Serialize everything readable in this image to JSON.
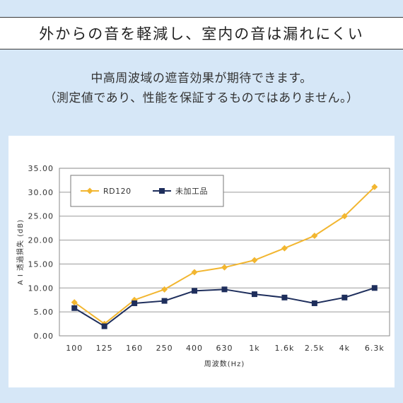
{
  "header": {
    "title": "外からの音を軽減し、室内の音は漏れにくい",
    "subtitle_line1": "中高周波域の遮音効果が期待できます。",
    "subtitle_line2": "（測定値であり、性能を保証するものではありません。）"
  },
  "chart_data": {
    "type": "line",
    "categories": [
      "100",
      "125",
      "160",
      "250",
      "400",
      "630",
      "1k",
      "1.6k",
      "2.5k",
      "4k",
      "6.3k"
    ],
    "xlabel": "周波数(Hz)",
    "ylabel": "A I 透過損失 (dB)",
    "ylim": [
      0,
      35
    ],
    "yticks": [
      "0.00",
      "5.00",
      "10.00",
      "15.00",
      "20.00",
      "25.00",
      "30.00",
      "35.00"
    ],
    "grid": true,
    "legend_position": "top-left",
    "series": [
      {
        "name": "RD120",
        "color": "#f2b630",
        "marker": "diamond",
        "values": [
          7.0,
          2.5,
          7.5,
          9.7,
          13.3,
          14.3,
          15.8,
          18.3,
          20.9,
          25.0,
          31.1
        ]
      },
      {
        "name": "未加工品",
        "color": "#1e2e5c",
        "marker": "square",
        "values": [
          5.8,
          2.0,
          6.8,
          7.3,
          9.4,
          9.7,
          8.7,
          8.0,
          6.8,
          8.0,
          10.0
        ]
      }
    ]
  }
}
